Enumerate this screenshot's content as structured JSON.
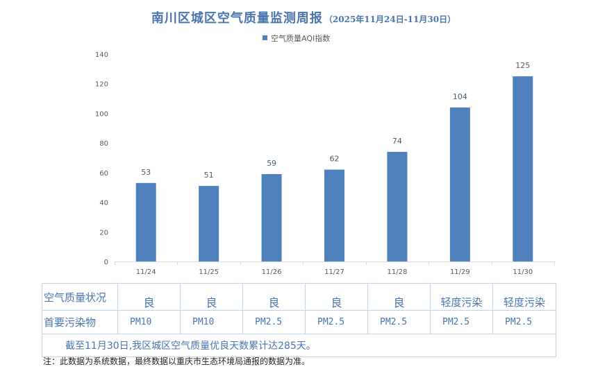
{
  "title": "南川区城区空气质量监测周报",
  "subtitle": "（2025年11月24日-11月30日）",
  "chart_data": {
    "type": "bar",
    "categories": [
      "11/24",
      "11/25",
      "11/26",
      "11/27",
      "11/28",
      "11/29",
      "11/30"
    ],
    "series": [
      {
        "name": "空气质量AQI指数",
        "values": [
          53,
          51,
          59,
          62,
          74,
          104,
          125
        ]
      }
    ],
    "ylim": [
      0,
      140
    ],
    "yticks": [
      0,
      20,
      40,
      60,
      80,
      100,
      120,
      140
    ],
    "grid": false,
    "legend": "top",
    "bar_color": "#4f81bd"
  },
  "table": {
    "row1_label": "空气质量状况",
    "grades": [
      "良",
      "良",
      "良",
      "良",
      "良",
      "轻度污染",
      "轻度污染"
    ],
    "row2_label": "首要污染物",
    "pollutants": [
      "PM10",
      "PM10",
      "PM2.5",
      "PM2.5",
      "PM2.5",
      "PM2.5",
      "PM2.5"
    ],
    "summary": "截至11月30日,我区城区空气质量优良天数累计达285天。"
  },
  "note": "注：此数据为系统数据，最终数据以重庆市生态环境局通报的数据为准。"
}
